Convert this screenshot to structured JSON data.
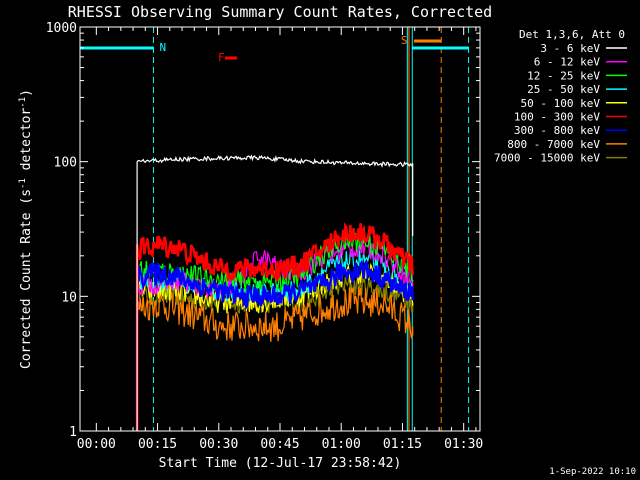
{
  "chart_data": {
    "type": "line",
    "title": "RHESSI Observing Summary Count Rates, Corrected",
    "xlabel": "Start Time (12-Jul-17 23:58:42)",
    "ylabel_main": "Corrected Count Rate (s",
    "ylabel_sup1": "-1",
    "ylabel_mid": " detector",
    "ylabel_sup2": "-1",
    "ylabel_end": ")",
    "x_unit": "minutes after 00:00",
    "xlim": [
      -4,
      94
    ],
    "ylim": [
      1,
      1000
    ],
    "yscale": "log",
    "x_ticks": [
      {
        "value": 0,
        "label": "00:00"
      },
      {
        "value": 15,
        "label": "00:15"
      },
      {
        "value": 30,
        "label": "00:30"
      },
      {
        "value": 45,
        "label": "00:45"
      },
      {
        "value": 60,
        "label": "01:00"
      },
      {
        "value": 75,
        "label": "01:15"
      },
      {
        "value": 90,
        "label": "01:30"
      }
    ],
    "y_ticks": [
      {
        "value": 1,
        "label": "1"
      },
      {
        "value": 10,
        "label": "10"
      },
      {
        "value": 100,
        "label": "100"
      },
      {
        "value": 1000,
        "label": "1000"
      }
    ],
    "legend_placement": "outside-right",
    "legend_header": "Det 1,3,6, Att 0",
    "series": [
      {
        "name": "3 - 6 keV",
        "color": "#000000",
        "legend_color": "#ffffff",
        "x": [
          10,
          20,
          30,
          40,
          50,
          60,
          70,
          77.5
        ],
        "values": [
          100,
          104,
          106,
          107,
          101,
          98,
          96,
          95
        ]
      },
      {
        "name": "6 - 12 keV",
        "color": "#ff00ff",
        "x": [
          10,
          20,
          30,
          35,
          40,
          45,
          50,
          55,
          60,
          65,
          70,
          75,
          77.5
        ],
        "values": [
          12,
          13,
          11,
          13,
          20,
          16,
          15,
          19,
          22,
          23,
          21,
          15,
          13
        ]
      },
      {
        "name": "12 - 25 keV",
        "color": "#00ff00",
        "x": [
          10,
          20,
          30,
          40,
          45,
          50,
          55,
          60,
          65,
          70,
          75,
          77.5
        ],
        "values": [
          16,
          15,
          13,
          13,
          13,
          14,
          20,
          25,
          26,
          23,
          17,
          15
        ]
      },
      {
        "name": "25 - 50 keV",
        "color": "#00ffff",
        "x": [
          10,
          20,
          30,
          40,
          50,
          55,
          60,
          65,
          70,
          75,
          77.5
        ],
        "values": [
          13,
          13,
          11,
          11,
          11,
          15,
          18,
          19,
          17,
          13,
          12
        ]
      },
      {
        "name": "50 - 100 keV",
        "color": "#ffff00",
        "x": [
          10,
          20,
          30,
          40,
          50,
          55,
          60,
          65,
          70,
          75,
          77.5
        ],
        "values": [
          11,
          11,
          9,
          9,
          10,
          12,
          14,
          15,
          14,
          11,
          10
        ]
      },
      {
        "name": "100 - 300 keV",
        "color": "#ff0000",
        "x": [
          10,
          15,
          20,
          25,
          30,
          35,
          40,
          45,
          50,
          55,
          60,
          65,
          70,
          75,
          77.5
        ],
        "values": [
          22,
          24,
          23,
          19,
          16,
          16,
          16,
          16,
          17,
          22,
          29,
          30,
          26,
          19,
          17
        ]
      },
      {
        "name": "300 - 800 keV",
        "color": "#0000ff",
        "x": [
          10,
          15,
          20,
          25,
          30,
          35,
          40,
          45,
          50,
          55,
          60,
          65,
          70,
          75,
          77.5
        ],
        "values": [
          14,
          15,
          14,
          12,
          11,
          10,
          10,
          10,
          11,
          12,
          15,
          16,
          14,
          11,
          11
        ]
      },
      {
        "name": "800 - 7000 keV",
        "color": "#ff8000",
        "x": [
          10,
          15,
          20,
          25,
          30,
          35,
          40,
          45,
          50,
          55,
          60,
          65,
          70,
          75,
          77.5
        ],
        "values": [
          8,
          9,
          8,
          7,
          6,
          6,
          6,
          6,
          7,
          8,
          9,
          9,
          9,
          7,
          6
        ]
      },
      {
        "name": "7000 - 15000 keV",
        "color": "#808000",
        "x": [
          10,
          20,
          30,
          40,
          50,
          55,
          60,
          65,
          70,
          75,
          77.5
        ],
        "values": [
          10,
          10,
          9,
          9,
          9,
          10,
          12,
          12,
          11,
          10,
          9
        ]
      }
    ],
    "annotations": [
      {
        "label": "N",
        "color": "#00ffff",
        "x": 16
      },
      {
        "label": "F",
        "color": "#ff0000",
        "x": 33.5
      },
      {
        "label": "S",
        "color": "#ff8000",
        "x": 76
      }
    ],
    "vertical_lines": [
      {
        "x": -4,
        "color": "#00ffff",
        "style": "solid"
      },
      {
        "x": 14,
        "color": "#00ffff",
        "style": "dashed"
      },
      {
        "x": 76.2,
        "color": "#00ffff",
        "style": "solid"
      },
      {
        "x": 76.6,
        "color": "#ff8000",
        "style": "solid"
      },
      {
        "x": 77.4,
        "color": "#00ffff",
        "style": "solid"
      },
      {
        "x": 84.5,
        "color": "#ff8000",
        "style": "dashed"
      },
      {
        "x": 91.2,
        "color": "#00ffff",
        "style": "dashed"
      }
    ],
    "footer_date": "1-Sep-2022 10:10"
  }
}
